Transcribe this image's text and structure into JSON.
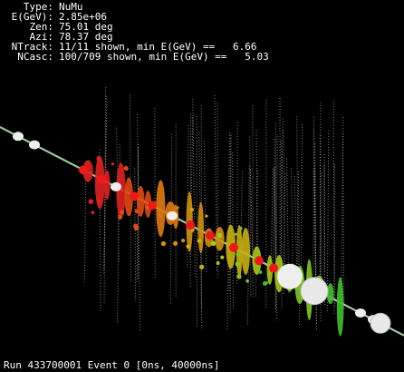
{
  "info": {
    "lines": [
      {
        "label": "Type:",
        "value": "NuMu"
      },
      {
        "label": "E(GeV):",
        "value": "2.85e+06"
      },
      {
        "label": "Zen:",
        "value": "75.01 deg"
      },
      {
        "label": "Azi:",
        "value": "78.37 deg"
      },
      {
        "label": "NTrack:",
        "value": "11/11 shown, min E(GeV) ==   6.66"
      },
      {
        "label": "NCasc:",
        "value": "100/709 shown, min E(GeV) ==   5.03"
      }
    ]
  },
  "footer": {
    "text": "Run 433700001 Event 0 [0ns, 40000ns]"
  }
}
